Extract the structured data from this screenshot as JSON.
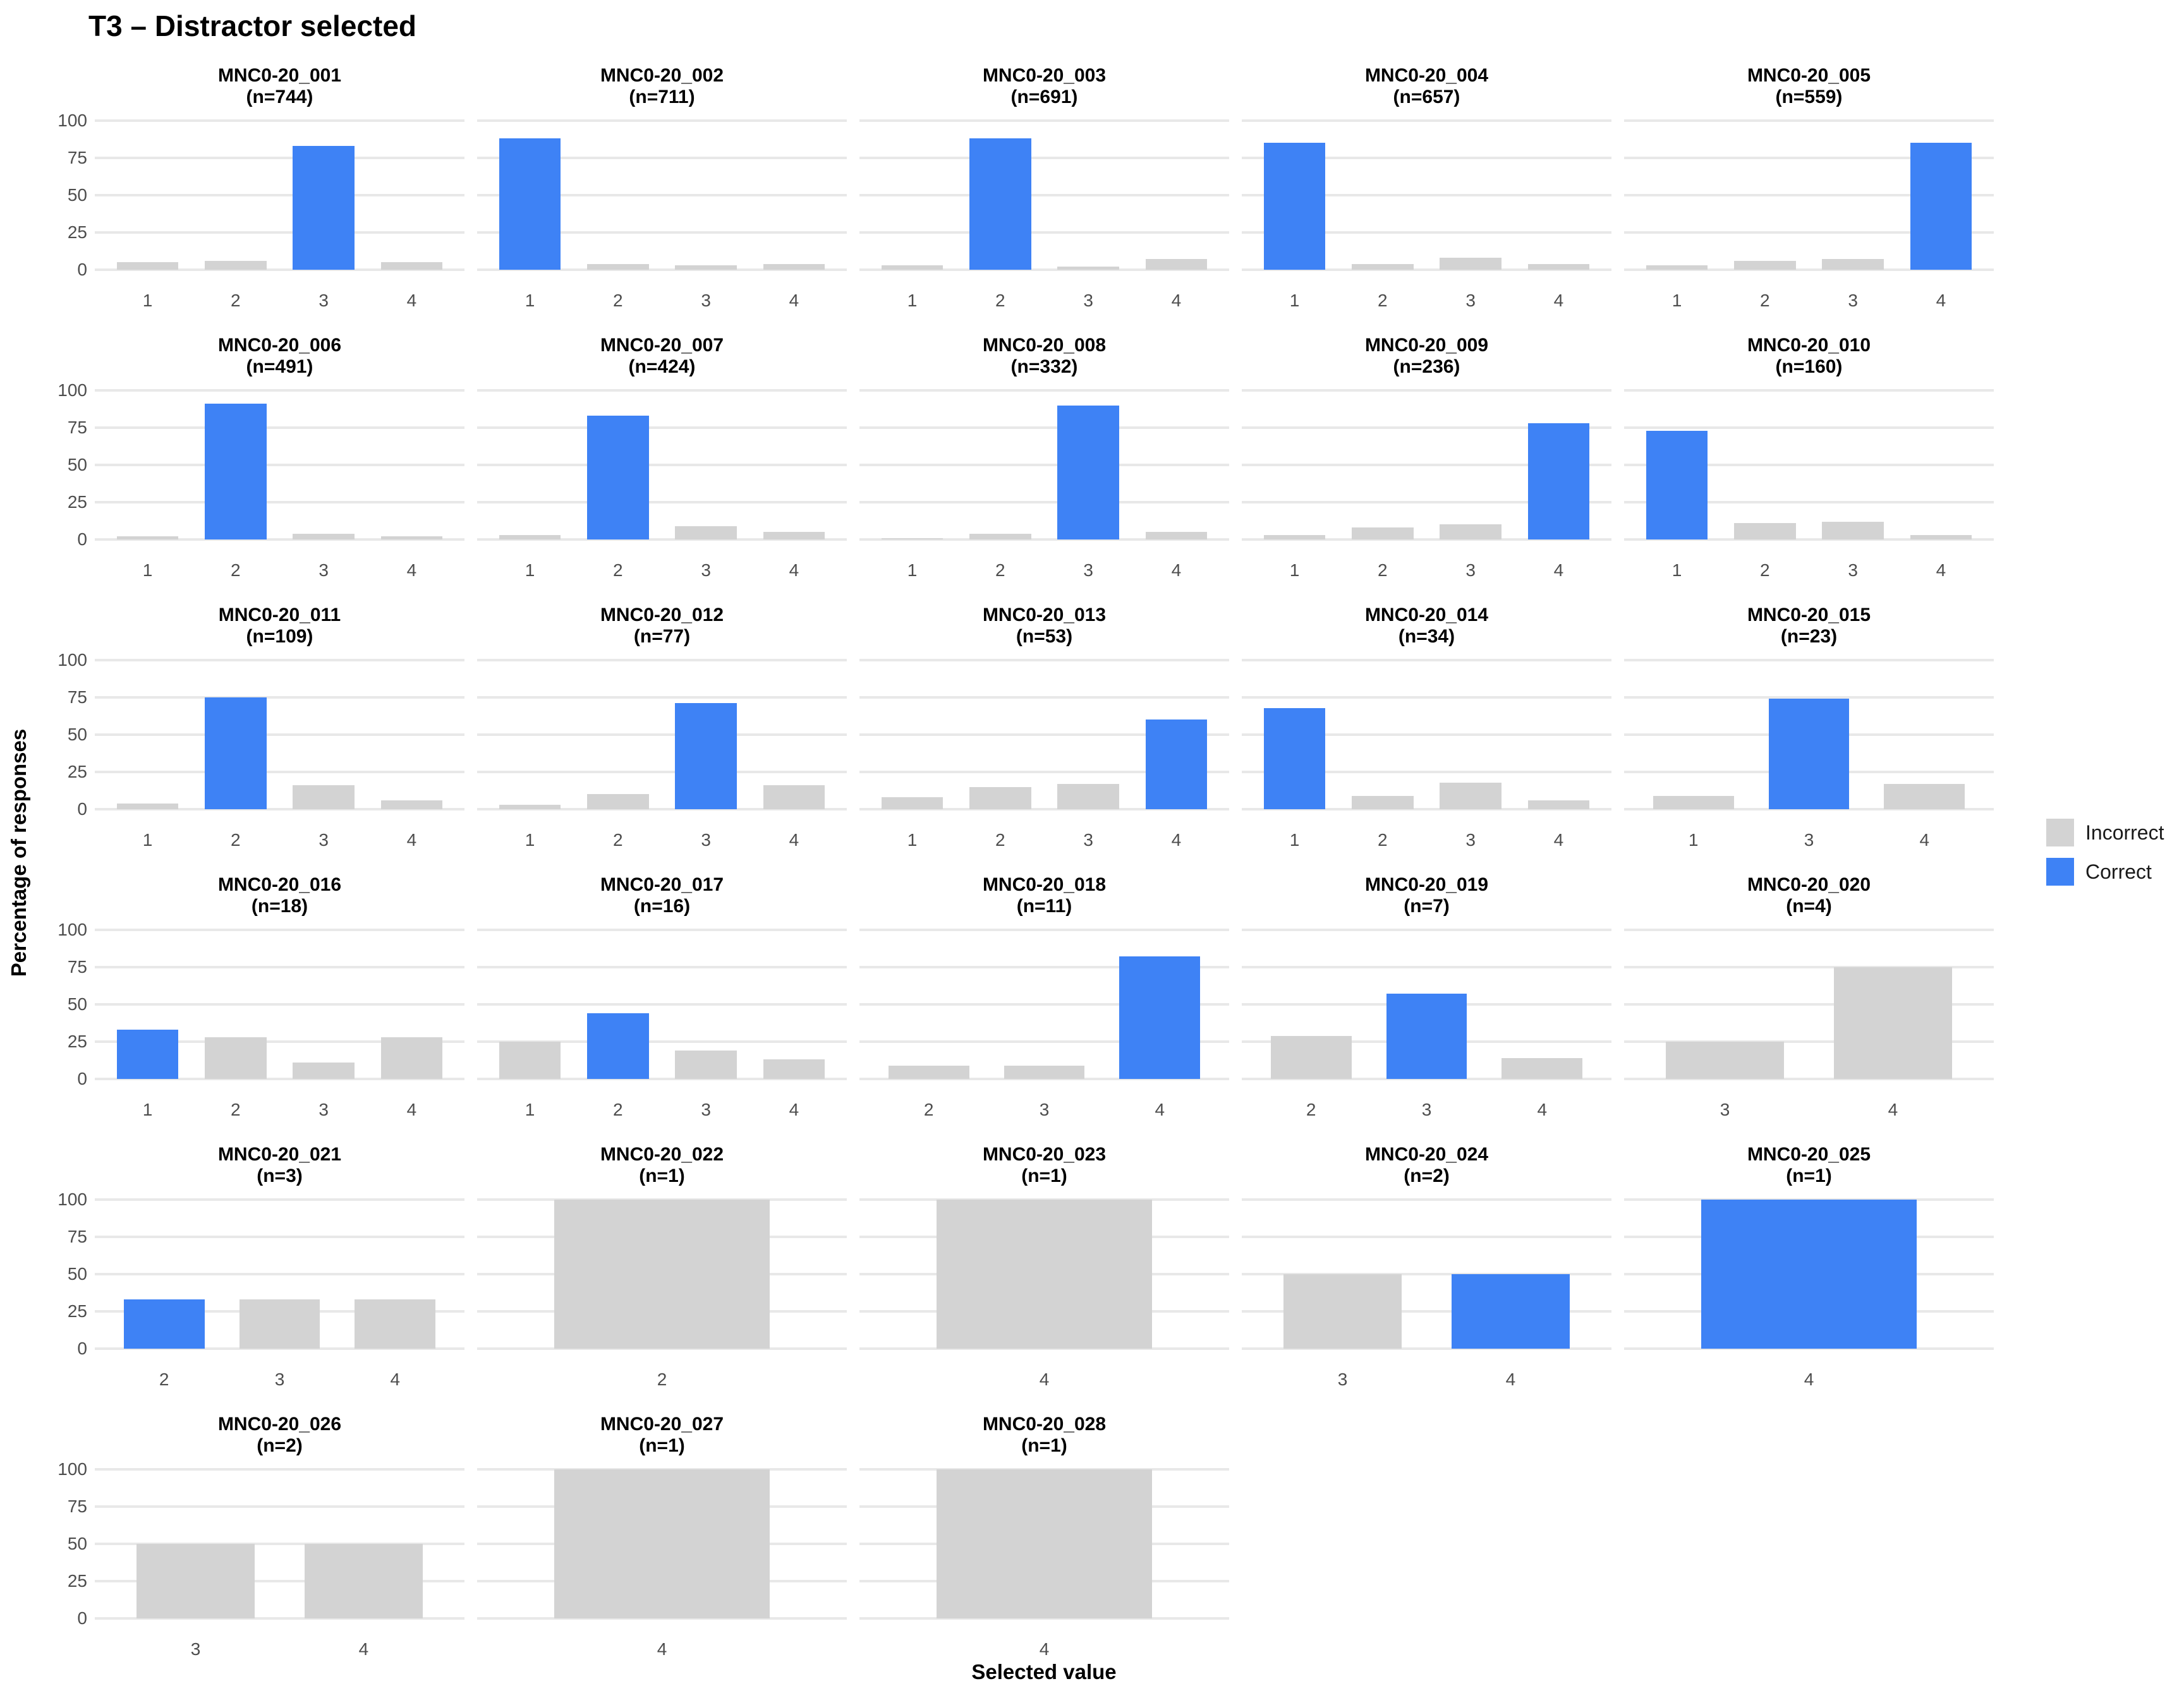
{
  "title": "T3 – Distractor selected",
  "y_axis": {
    "label": "Percentage of responses",
    "ticks": [
      100,
      75,
      50,
      25,
      0
    ]
  },
  "x_axis": {
    "label": "Selected value"
  },
  "legend": {
    "position": "right-center",
    "items": [
      {
        "label": "Incorrect",
        "key": "incorrect",
        "color": "#d3d3d3"
      },
      {
        "label": "Correct",
        "key": "correct",
        "color": "#3e82f5"
      }
    ]
  },
  "colors": {
    "correct_bar": "#3e82f5",
    "incorrect_bar": "#d3d3d3",
    "gridline": "#e8e8e8",
    "tick_text": "#4d4d4d",
    "title_text": "#000000",
    "background": "#ffffff"
  },
  "chart_data": {
    "type": "bar",
    "title": "T3 – Distractor selected",
    "xlabel": "Selected value",
    "ylabel": "Percentage of responses",
    "ylim": [
      0,
      100
    ],
    "yticks": [
      0,
      25,
      50,
      75,
      100
    ],
    "grid": "horizontal-major-only",
    "legend_position": "right",
    "facets_per_row": 5,
    "facets": [
      {
        "id": "MNC0-20_001",
        "subtitle": "(n=744)",
        "n": 744,
        "categories": [
          "1",
          "2",
          "3",
          "4"
        ],
        "values": [
          5,
          6,
          83,
          5
        ],
        "correct_value": "3"
      },
      {
        "id": "MNC0-20_002",
        "subtitle": "(n=711)",
        "n": 711,
        "categories": [
          "1",
          "2",
          "3",
          "4"
        ],
        "values": [
          88,
          4,
          3,
          4
        ],
        "correct_value": "1"
      },
      {
        "id": "MNC0-20_003",
        "subtitle": "(n=691)",
        "n": 691,
        "categories": [
          "1",
          "2",
          "3",
          "4"
        ],
        "values": [
          3,
          88,
          2,
          7
        ],
        "correct_value": "2"
      },
      {
        "id": "MNC0-20_004",
        "subtitle": "(n=657)",
        "n": 657,
        "categories": [
          "1",
          "2",
          "3",
          "4"
        ],
        "values": [
          85,
          4,
          8,
          4
        ],
        "correct_value": "1"
      },
      {
        "id": "MNC0-20_005",
        "subtitle": "(n=559)",
        "n": 559,
        "categories": [
          "1",
          "2",
          "3",
          "4"
        ],
        "values": [
          3,
          6,
          7,
          85
        ],
        "correct_value": "4"
      },
      {
        "id": "MNC0-20_006",
        "subtitle": "(n=491)",
        "n": 491,
        "categories": [
          "1",
          "2",
          "3",
          "4"
        ],
        "values": [
          2,
          91,
          4,
          2
        ],
        "correct_value": "2"
      },
      {
        "id": "MNC0-20_007",
        "subtitle": "(n=424)",
        "n": 424,
        "categories": [
          "1",
          "2",
          "3",
          "4"
        ],
        "values": [
          3,
          83,
          9,
          5
        ],
        "correct_value": "2"
      },
      {
        "id": "MNC0-20_008",
        "subtitle": "(n=332)",
        "n": 332,
        "categories": [
          "1",
          "2",
          "3",
          "4"
        ],
        "values": [
          1,
          4,
          90,
          5
        ],
        "correct_value": "3"
      },
      {
        "id": "MNC0-20_009",
        "subtitle": "(n=236)",
        "n": 236,
        "categories": [
          "1",
          "2",
          "3",
          "4"
        ],
        "values": [
          3,
          8,
          10,
          78
        ],
        "correct_value": "4"
      },
      {
        "id": "MNC0-20_010",
        "subtitle": "(n=160)",
        "n": 160,
        "categories": [
          "1",
          "2",
          "3",
          "4"
        ],
        "values": [
          73,
          11,
          12,
          3
        ],
        "correct_value": "1"
      },
      {
        "id": "MNC0-20_011",
        "subtitle": "(n=109)",
        "n": 109,
        "categories": [
          "1",
          "2",
          "3",
          "4"
        ],
        "values": [
          4,
          75,
          16,
          6
        ],
        "correct_value": "2"
      },
      {
        "id": "MNC0-20_012",
        "subtitle": "(n=77)",
        "n": 77,
        "categories": [
          "1",
          "2",
          "3",
          "4"
        ],
        "values": [
          3,
          10,
          71,
          16
        ],
        "correct_value": "3"
      },
      {
        "id": "MNC0-20_013",
        "subtitle": "(n=53)",
        "n": 53,
        "categories": [
          "1",
          "2",
          "3",
          "4"
        ],
        "values": [
          8,
          15,
          17,
          60
        ],
        "correct_value": "4"
      },
      {
        "id": "MNC0-20_014",
        "subtitle": "(n=34)",
        "n": 34,
        "categories": [
          "1",
          "2",
          "3",
          "4"
        ],
        "values": [
          68,
          9,
          18,
          6
        ],
        "correct_value": "1"
      },
      {
        "id": "MNC0-20_015",
        "subtitle": "(n=23)",
        "n": 23,
        "categories": [
          "1",
          "3",
          "4"
        ],
        "values": [
          9,
          74,
          17
        ],
        "correct_value": "3"
      },
      {
        "id": "MNC0-20_016",
        "subtitle": "(n=18)",
        "n": 18,
        "categories": [
          "1",
          "2",
          "3",
          "4"
        ],
        "values": [
          33,
          28,
          11,
          28
        ],
        "correct_value": "1"
      },
      {
        "id": "MNC0-20_017",
        "subtitle": "(n=16)",
        "n": 16,
        "categories": [
          "1",
          "2",
          "3",
          "4"
        ],
        "values": [
          25,
          44,
          19,
          13
        ],
        "correct_value": "2"
      },
      {
        "id": "MNC0-20_018",
        "subtitle": "(n=11)",
        "n": 11,
        "categories": [
          "2",
          "3",
          "4"
        ],
        "values": [
          9,
          9,
          82
        ],
        "correct_value": "4"
      },
      {
        "id": "MNC0-20_019",
        "subtitle": "(n=7)",
        "n": 7,
        "categories": [
          "2",
          "3",
          "4"
        ],
        "values": [
          29,
          57,
          14
        ],
        "correct_value": "3"
      },
      {
        "id": "MNC0-20_020",
        "subtitle": "(n=4)",
        "n": 4,
        "categories": [
          "3",
          "4"
        ],
        "values": [
          25,
          75
        ],
        "correct_value": null
      },
      {
        "id": "MNC0-20_021",
        "subtitle": "(n=3)",
        "n": 3,
        "categories": [
          "2",
          "3",
          "4"
        ],
        "values": [
          33,
          33,
          33
        ],
        "correct_value": "2"
      },
      {
        "id": "MNC0-20_022",
        "subtitle": "(n=1)",
        "n": 1,
        "categories": [
          "2"
        ],
        "values": [
          100
        ],
        "correct_value": null
      },
      {
        "id": "MNC0-20_023",
        "subtitle": "(n=1)",
        "n": 1,
        "categories": [
          "4"
        ],
        "values": [
          100
        ],
        "correct_value": null
      },
      {
        "id": "MNC0-20_024",
        "subtitle": "(n=2)",
        "n": 2,
        "categories": [
          "3",
          "4"
        ],
        "values": [
          50,
          50
        ],
        "correct_value": "4"
      },
      {
        "id": "MNC0-20_025",
        "subtitle": "(n=1)",
        "n": 1,
        "categories": [
          "4"
        ],
        "values": [
          100
        ],
        "correct_value": "4"
      },
      {
        "id": "MNC0-20_026",
        "subtitle": "(n=2)",
        "n": 2,
        "categories": [
          "3",
          "4"
        ],
        "values": [
          50,
          50
        ],
        "correct_value": null
      },
      {
        "id": "MNC0-20_027",
        "subtitle": "(n=1)",
        "n": 1,
        "categories": [
          "4"
        ],
        "values": [
          100
        ],
        "correct_value": null
      },
      {
        "id": "MNC0-20_028",
        "subtitle": "(n=1)",
        "n": 1,
        "categories": [
          "4"
        ],
        "values": [
          100
        ],
        "correct_value": null
      }
    ]
  }
}
